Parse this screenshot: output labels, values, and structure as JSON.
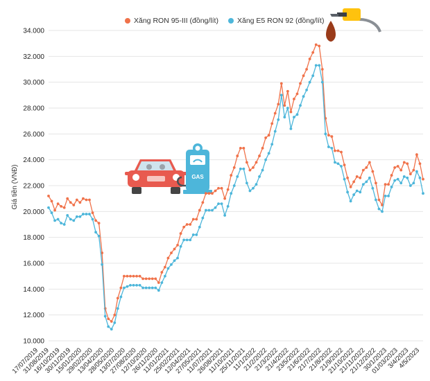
{
  "colors": {
    "series_ron95": "#F0724A",
    "series_e5": "#4DB6DA",
    "grid": "#e4e4e4",
    "axis_text": "#222222",
    "car_body": "#E85A4F",
    "pump_body": "#4DB6DA"
  },
  "legend": {
    "ron95": "Xăng RON 95-III (đồng/lít)",
    "e5": "Xăng E5 RON 92 (đồng/lít)"
  },
  "icons": {
    "fuel_nozzle": "fuel-nozzle-icon",
    "car": "car-icon",
    "gas_pump": "gas-pump-icon"
  },
  "gas_pump_label": "GAS",
  "chart_data": {
    "type": "line",
    "ylabel": "Giá tiền (VNĐ)",
    "xlabel": "",
    "ylim": [
      10000,
      34000
    ],
    "yticks": [
      "10.000",
      "12.000",
      "14.000",
      "16.000",
      "18.000",
      "20.000",
      "22.000",
      "24.000",
      "26.000",
      "28.000",
      "30.000",
      "32.000",
      "34.000"
    ],
    "ytick_values": [
      10000,
      12000,
      14000,
      16000,
      18000,
      20000,
      22000,
      24000,
      26000,
      28000,
      30000,
      32000,
      34000
    ],
    "grid": true,
    "legend_position": "top",
    "x_tick_labels": [
      "17/07/2019",
      "31/08/2019",
      "16/10/2019",
      "30/11/2019",
      "15/01/2020",
      "29/02/2020",
      "13/04/2020",
      "28/05/2020",
      "13/07/2020",
      "27/08/2020",
      "12/10/2020",
      "26/11/2020",
      "11/01/2021",
      "25/02/2021",
      "12/04/2021",
      "27/05/2021",
      "11/07/2021",
      "26/08/2021",
      "11/10/2021",
      "25/11/2021",
      "11/1/2022",
      "21/2/2022",
      "21/3/2022",
      "21/4/2022",
      "23/5/2022",
      "21/6/2022",
      "21/7/2022",
      "21/8/2022",
      "21/9/2022",
      "21/10/2022",
      "21/11/2022",
      "21/12/2022",
      "30/1/2023",
      "01/03/2023",
      "3/4/2023",
      "4/5/2023"
    ],
    "series": [
      {
        "name": "Xăng RON 95-III (đồng/lít)",
        "values": [
          21200,
          20800,
          20100,
          20600,
          20400,
          20300,
          21000,
          20700,
          20500,
          20900,
          20700,
          21000,
          20900,
          20900,
          19900,
          19300,
          19100,
          16800,
          12500,
          11700,
          11500,
          12000,
          13300,
          14100,
          15000,
          15000,
          15000,
          15000,
          15000,
          15000,
          14800,
          14800,
          14800,
          14800,
          14800,
          14500,
          15300,
          15700,
          16400,
          16800,
          17100,
          17400,
          18300,
          18800,
          19000,
          19000,
          19400,
          19400,
          20100,
          20700,
          21400,
          21400,
          21400,
          21600,
          21800,
          21800,
          21000,
          21700,
          22800,
          23400,
          24300,
          24900,
          24900,
          23800,
          23200,
          23400,
          23800,
          24300,
          24900,
          25700,
          25900,
          26800,
          27600,
          28300,
          29900,
          28200,
          29300,
          27700,
          28700,
          29100,
          29900,
          30500,
          31000,
          31800,
          32300,
          32900,
          32800,
          31000,
          27200,
          25900,
          25800,
          24700,
          24700,
          24600,
          23600,
          22600,
          21900,
          22300,
          22700,
          22600,
          23200,
          23400,
          23800,
          23100,
          22200,
          20900,
          20500,
          22100,
          22100,
          22800,
          23400,
          23500,
          23200,
          23800,
          23700,
          22900,
          23200,
          24400,
          23700,
          22500
        ]
      },
      {
        "name": "Xăng E5 RON 92 (đồng/lít)",
        "values": [
          20300,
          19900,
          19300,
          19400,
          19100,
          19000,
          19700,
          19400,
          19300,
          19600,
          19600,
          19800,
          19800,
          19800,
          19400,
          18400,
          18100,
          15900,
          11900,
          11100,
          10900,
          11400,
          12500,
          13400,
          14100,
          14200,
          14300,
          14300,
          14300,
          14300,
          14100,
          14100,
          14100,
          14100,
          14100,
          13900,
          14500,
          15000,
          15600,
          15900,
          16200,
          16400,
          17300,
          17800,
          17800,
          17800,
          18200,
          18200,
          18800,
          19500,
          20100,
          20100,
          20100,
          20300,
          20600,
          20600,
          19700,
          20400,
          21400,
          22000,
          22700,
          23300,
          23300,
          22200,
          21600,
          21800,
          22100,
          22700,
          23200,
          24000,
          24500,
          25200,
          26200,
          27100,
          29000,
          27300,
          28000,
          26400,
          27300,
          27500,
          28200,
          28900,
          29400,
          30000,
          30500,
          31300,
          31300,
          30000,
          26000,
          25000,
          24900,
          23800,
          23700,
          23500,
          22500,
          21500,
          20800,
          21300,
          21600,
          21500,
          22100,
          22300,
          22600,
          21800,
          20900,
          20200,
          20000,
          21200,
          21200,
          21900,
          22400,
          22500,
          22200,
          22700,
          22600,
          22000,
          22200,
          23100,
          22600,
          21400
        ]
      }
    ]
  }
}
